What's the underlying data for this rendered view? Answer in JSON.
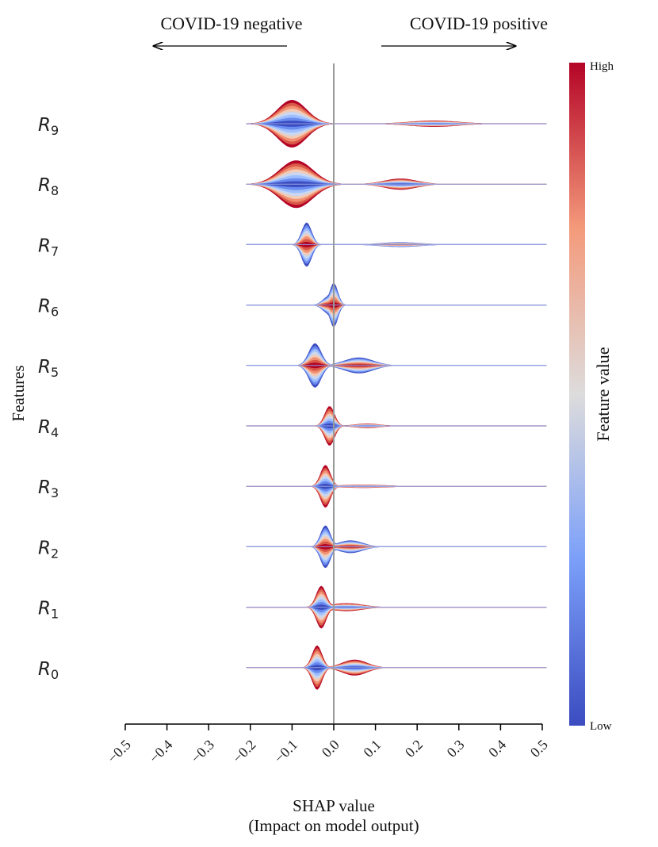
{
  "chart_data": {
    "type": "violin",
    "direction_labels": {
      "negative": "COVID-19 negative",
      "positive": "COVID-19 positive"
    },
    "xlabel": "SHAP value",
    "xlabel_line2": "(Impact on model output)",
    "ylabel": "Features",
    "xlim": [
      -0.5,
      0.5
    ],
    "x_ticks": [
      -0.5,
      -0.4,
      -0.3,
      -0.2,
      -0.1,
      0.0,
      0.1,
      0.2,
      0.3,
      0.4,
      0.5
    ],
    "x_tick_labels": [
      "−0.5",
      "−0.4",
      "−0.3",
      "−0.2",
      "−0.1",
      "0.0",
      "0.1",
      "0.2",
      "0.3",
      "0.4",
      "0.5"
    ],
    "colorbar": {
      "label": "Feature value",
      "high": "High",
      "low": "Low",
      "low_color": "#3b4cc0",
      "high_color": "#b40426"
    },
    "features": [
      {
        "name": "R",
        "sub": "9",
        "range": [
          -0.21,
          0.51
        ],
        "neg_peak": -0.1,
        "neg_height": 30,
        "neg_width": 0.035,
        "pos_peak": 0.24,
        "pos_height": 4,
        "pos_width": 0.06,
        "high_side": "negative"
      },
      {
        "name": "R",
        "sub": "8",
        "range": [
          -0.21,
          0.51
        ],
        "neg_peak": -0.09,
        "neg_height": 30,
        "neg_width": 0.04,
        "pos_peak": 0.16,
        "pos_height": 7,
        "pos_width": 0.04,
        "high_side": "negative"
      },
      {
        "name": "R",
        "sub": "7",
        "range": [
          -0.21,
          0.51
        ],
        "neg_peak": -0.065,
        "neg_height": 28,
        "neg_width": 0.012,
        "pos_peak": 0.16,
        "pos_height": 3,
        "pos_width": 0.05,
        "high_side": "positive"
      },
      {
        "name": "R",
        "sub": "6",
        "range": [
          -0.21,
          0.51
        ],
        "neg_peak": -0.01,
        "neg_height": 12,
        "neg_width": 0.015,
        "pos_peak": 0.0,
        "pos_height": 28,
        "pos_width": 0.01,
        "high_side": "positive"
      },
      {
        "name": "R",
        "sub": "5",
        "range": [
          -0.21,
          0.51
        ],
        "neg_peak": -0.045,
        "neg_height": 28,
        "neg_width": 0.015,
        "pos_peak": 0.06,
        "pos_height": 10,
        "pos_width": 0.035,
        "high_side": "positive"
      },
      {
        "name": "R",
        "sub": "4",
        "range": [
          -0.21,
          0.51
        ],
        "neg_peak": -0.01,
        "neg_height": 25,
        "neg_width": 0.012,
        "pos_peak": 0.08,
        "pos_height": 3,
        "pos_width": 0.03,
        "high_side": "negative"
      },
      {
        "name": "R",
        "sub": "3",
        "range": [
          -0.21,
          0.51
        ],
        "neg_peak": -0.02,
        "neg_height": 27,
        "neg_width": 0.012,
        "pos_peak": 0.07,
        "pos_height": 2,
        "pos_width": 0.06,
        "high_side": "negative"
      },
      {
        "name": "R",
        "sub": "2",
        "range": [
          -0.21,
          0.51
        ],
        "neg_peak": -0.02,
        "neg_height": 27,
        "neg_width": 0.012,
        "pos_peak": 0.04,
        "pos_height": 8,
        "pos_width": 0.03,
        "high_side": "positive"
      },
      {
        "name": "R",
        "sub": "1",
        "range": [
          -0.21,
          0.51
        ],
        "neg_peak": -0.03,
        "neg_height": 27,
        "neg_width": 0.012,
        "pos_peak": 0.03,
        "pos_height": 5,
        "pos_width": 0.04,
        "high_side": "negative"
      },
      {
        "name": "R",
        "sub": "0",
        "range": [
          -0.21,
          0.51
        ],
        "neg_peak": -0.04,
        "neg_height": 28,
        "neg_width": 0.012,
        "pos_peak": 0.05,
        "pos_height": 10,
        "pos_width": 0.03,
        "high_side": "negative"
      }
    ]
  }
}
